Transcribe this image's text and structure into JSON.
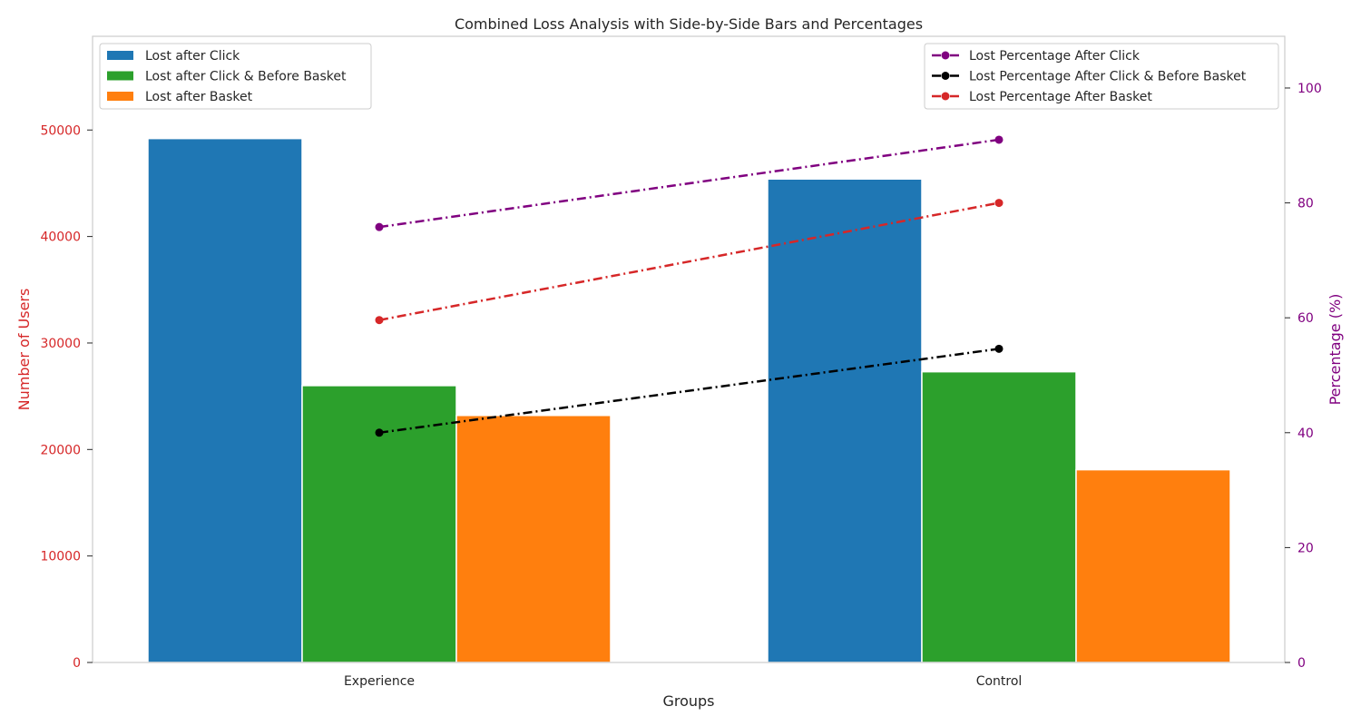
{
  "chart_data": {
    "type": "bar",
    "title": "Combined Loss Analysis with Side-by-Side Bars and Percentages",
    "xlabel": "Groups",
    "ylabel": "Number of Users",
    "y2label": "Percentage (%)",
    "categories": [
      "Experience",
      "Control"
    ],
    "ylim": [
      0,
      58800
    ],
    "y2lim": [
      0,
      109
    ],
    "yticks": [
      0,
      10000,
      20000,
      30000,
      40000,
      50000
    ],
    "y2ticks": [
      0,
      20,
      40,
      60,
      80,
      100
    ],
    "grid": false,
    "series": [
      {
        "name": "Lost after Click",
        "values": [
          49200,
          45400
        ],
        "color": "#1f77b4"
      },
      {
        "name": "Lost after Click & Before Basket",
        "values": [
          26000,
          27300
        ],
        "color": "#2ca02c"
      },
      {
        "name": "Lost after Basket",
        "values": [
          23200,
          18100
        ],
        "color": "#ff7f0e"
      }
    ],
    "line_series": [
      {
        "name": "Lost Percentage After Click",
        "values": [
          75.8,
          91.0
        ],
        "color": "#800080"
      },
      {
        "name": "Lost Percentage After Click & Before Basket",
        "values": [
          40.0,
          54.6
        ],
        "color": "#000000"
      },
      {
        "name": "Lost Percentage After Basket",
        "values": [
          59.6,
          80.0
        ],
        "color": "#d62728"
      }
    ],
    "left_axis_color": "#d62728",
    "right_axis_color": "#800080",
    "bar_legend_position": "upper left",
    "line_legend_position": "upper right"
  }
}
